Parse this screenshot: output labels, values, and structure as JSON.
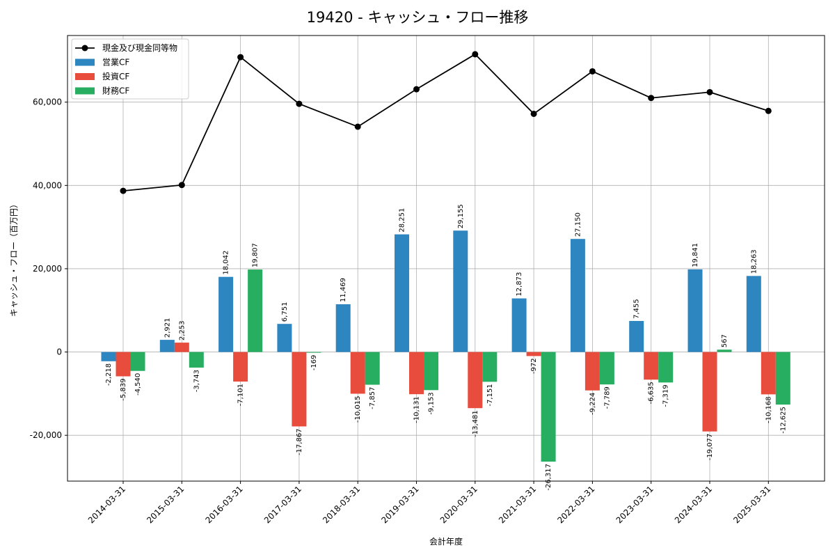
{
  "chart_data": {
    "type": "bar",
    "title": "19420 - キャッシュ・フロー推移",
    "xlabel": "会計年度",
    "ylabel": "キャッシュ・フロー（百万円）",
    "categories": [
      "2014-03-31",
      "2015-03-31",
      "2016-03-31",
      "2017-03-31",
      "2018-03-31",
      "2019-03-31",
      "2020-03-31",
      "2021-03-31",
      "2022-03-31",
      "2023-03-31",
      "2024-03-31",
      "2025-03-31"
    ],
    "ylim": [
      -31000,
      76000
    ],
    "yticks": [
      -20000,
      0,
      20000,
      40000,
      60000
    ],
    "ytick_labels": [
      "-20,000",
      "0",
      "20,000",
      "40,000",
      "60,000"
    ],
    "grid": true,
    "legend_position": "top-left",
    "series": [
      {
        "name": "営業CF",
        "kind": "bar",
        "color": "#2e86c1",
        "values": [
          -2218,
          2921,
          18042,
          6751,
          11469,
          28251,
          29155,
          12873,
          27150,
          7455,
          19841,
          18263
        ],
        "labels": [
          "-2,218",
          "2,921",
          "18,042",
          "6,751",
          "11,469",
          "28,251",
          "29,155",
          "12,873",
          "27,150",
          "7,455",
          "19,841",
          "18,263"
        ]
      },
      {
        "name": "投資CF",
        "kind": "bar",
        "color": "#e74c3c",
        "values": [
          -5839,
          2253,
          -7101,
          -17867,
          -10015,
          -10131,
          -13481,
          -972,
          -9224,
          -6635,
          -19077,
          -10168
        ],
        "labels": [
          "-5,839",
          "2,253",
          "-7,101",
          "-17,867",
          "-10,015",
          "-10,131",
          "-13,481",
          "-972",
          "-9,224",
          "-6,635",
          "-19,077",
          "-10,168"
        ]
      },
      {
        "name": "財務CF",
        "kind": "bar",
        "color": "#27ae60",
        "values": [
          -4540,
          -3743,
          19807,
          -169,
          -7857,
          -9153,
          -7151,
          -26317,
          -7789,
          -7319,
          567,
          -12625
        ],
        "labels": [
          "-4,540",
          "-3,743",
          "19,807",
          "-169",
          "-7,857",
          "-9,153",
          "-7,151",
          "-26,317",
          "-7,789",
          "-7,319",
          "567",
          "-12,625"
        ]
      },
      {
        "name": "現金及び現金同等物",
        "kind": "line",
        "color": "#000000",
        "values": [
          38700,
          40100,
          70800,
          59600,
          54100,
          63100,
          71500,
          57200,
          67400,
          61000,
          62400,
          57900
        ]
      }
    ]
  }
}
